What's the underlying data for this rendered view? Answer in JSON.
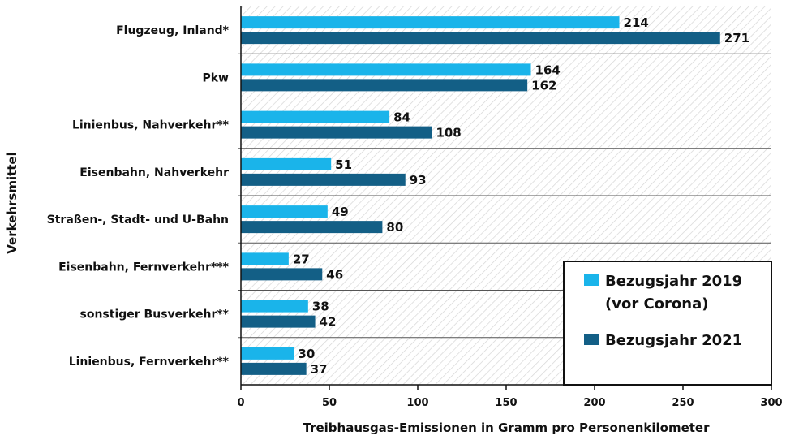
{
  "chart_data": {
    "type": "bar",
    "orientation": "horizontal",
    "categories": [
      "Flugzeug, Inland*",
      "Pkw",
      "Linienbus, Nahverkehr**",
      "Eisenbahn, Nahverkehr",
      "Straßen-, Stadt- und U-Bahn",
      "Eisenbahn, Fernverkehr***",
      "sonstiger Busverkehr**",
      "Linienbus, Fernverkehr**"
    ],
    "series": [
      {
        "name_lines": [
          "Bezugsjahr 2019",
          "(vor Corona)"
        ],
        "values": [
          214,
          164,
          84,
          51,
          49,
          27,
          38,
          30
        ],
        "color": "#1ab4ea"
      },
      {
        "name_lines": [
          "Bezugsjahr 2021"
        ],
        "values": [
          271,
          162,
          108,
          93,
          80,
          46,
          42,
          37
        ],
        "color": "#135f86"
      }
    ],
    "xlabel": "Treibhausgas-Emissionen in Gramm pro Personenkilometer",
    "ylabel": "Verkehrsmittel",
    "xlim": [
      0,
      300
    ],
    "xticks": [
      "0",
      "50",
      "100",
      "150",
      "200",
      "250",
      "300"
    ],
    "grid": false,
    "background": "hatched",
    "legend_position": "bottom-right"
  }
}
